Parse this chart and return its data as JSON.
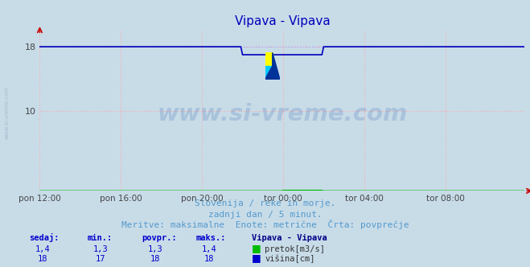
{
  "title": "Vipava - Vipava",
  "bg_color": "#c8dce8",
  "plot_bg_color": "#c8dce8",
  "grid_color": "#ffaaaa",
  "grid_style": ":",
  "ylim": [
    0,
    20
  ],
  "yticks": [
    10,
    18
  ],
  "xlabel_ticks": [
    "pon 12:00",
    "pon 16:00",
    "pon 20:00",
    "tor 00:00",
    "tor 04:00",
    "tor 08:00"
  ],
  "xtick_positions": [
    0,
    48,
    96,
    144,
    192,
    240
  ],
  "total_points": 288,
  "line_height_color": "#0000bb",
  "line_flow_color": "#00bb00",
  "dotted_avg_color": "#aaaaff",
  "subtitle1": "Slovenija / reke in morje.",
  "subtitle2": "zadnji dan / 5 minut.",
  "subtitle3": "Meritve: maksimalne  Enote: metrične  Črta: povprečje",
  "subtitle_color": "#5599cc",
  "watermark": "www.si-vreme.com",
  "watermark_color": "#2255aa",
  "watermark_alpha": 0.18,
  "table_headers": [
    "sedaj:",
    "min.:",
    "povpr.:",
    "maks.:",
    "Vipava - Vipava"
  ],
  "table_row1": [
    "1,4",
    "1,3",
    "1,3",
    "1,4"
  ],
  "table_row2": [
    "18",
    "17",
    "18",
    "18"
  ],
  "legend_label1": "pretok[m3/s]",
  "legend_label2": "višina[cm]",
  "legend_color1": "#00bb00",
  "legend_color2": "#0000cc",
  "table_color": "#0000cc",
  "height_baseline": 18,
  "height_dip_start": 120,
  "height_dip_end": 168,
  "height_dip_value": 17,
  "flow_baseline": 0.015,
  "flow_bump_start": 144,
  "flow_bump_end": 168,
  "flow_bump_value": 0.08,
  "sidebar_text": "www.si-vreme.com",
  "sidebar_color": "#aabbcc"
}
